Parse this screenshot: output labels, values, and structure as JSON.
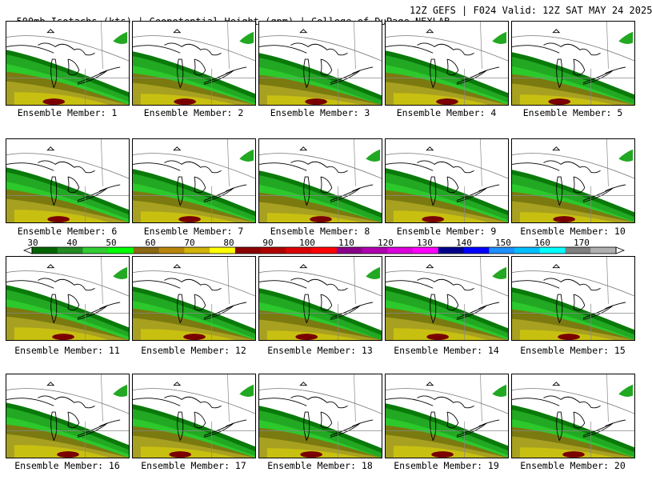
{
  "header": {
    "title": "500mb Isotachs (kts) | Geopotential Height (gpm) | College of DuPage NEXLAB",
    "valid": "12Z GEFS | F024 Valid: 12Z SAT MAY 24 2025"
  },
  "members": [
    {
      "caption": "Ensemble Member: 1"
    },
    {
      "caption": "Ensemble Member: 2"
    },
    {
      "caption": "Ensemble Member: 3"
    },
    {
      "caption": "Ensemble Member: 4"
    },
    {
      "caption": "Ensemble Member: 5"
    },
    {
      "caption": "Ensemble Member: 6"
    },
    {
      "caption": "Ensemble Member: 7"
    },
    {
      "caption": "Ensemble Member: 8"
    },
    {
      "caption": "Ensemble Member: 9"
    },
    {
      "caption": "Ensemble Member: 10"
    },
    {
      "caption": "Ensemble Member: 11"
    },
    {
      "caption": "Ensemble Member: 12"
    },
    {
      "caption": "Ensemble Member: 13"
    },
    {
      "caption": "Ensemble Member: 14"
    },
    {
      "caption": "Ensemble Member: 15"
    },
    {
      "caption": "Ensemble Member: 16"
    },
    {
      "caption": "Ensemble Member: 17"
    },
    {
      "caption": "Ensemble Member: 18"
    },
    {
      "caption": "Ensemble Member: 19"
    },
    {
      "caption": "Ensemble Member: 20"
    }
  ],
  "colorbar": {
    "labels": [
      "30",
      "40",
      "50",
      "60",
      "70",
      "80",
      "90",
      "100",
      "110",
      "120",
      "130",
      "140",
      "150",
      "160",
      "170"
    ],
    "colors": [
      "#006400",
      "#228b22",
      "#32cd32",
      "#00ff00",
      "#8b6914",
      "#b8860b",
      "#d2b40a",
      "#ffff00",
      "#8b0000",
      "#b00000",
      "#dd0000",
      "#ff0000",
      "#8b008b",
      "#b000b0",
      "#dd00dd",
      "#ff00ff",
      "#00008b",
      "#0000ff",
      "#1e90ff",
      "#00bfff",
      "#00ffff",
      "#808080",
      "#b0b0b0"
    ]
  },
  "palette": {
    "dark_green": "#0a7a0a",
    "green": "#22a822",
    "light_green": "#33dd33",
    "olive": "#7a7a10",
    "khaki": "#a8a020",
    "yellow_olive": "#c8c010",
    "dark_red": "#7a0000"
  }
}
